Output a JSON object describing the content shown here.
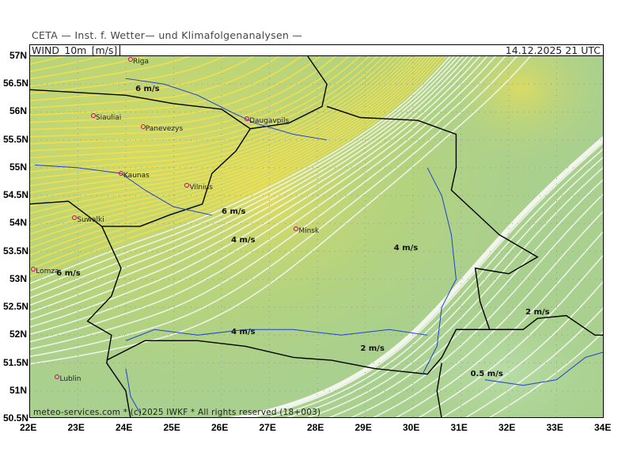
{
  "header": {
    "title": "CETA — Inst. f. Wetter— und Klimafolgenanalysen —",
    "variable": "WIND_10m_[m/s]",
    "valid_time": "14.12.2025 21 UTC"
  },
  "footer": {
    "copyright": "meteo-services.com * (c)2025 IWKF * All rights reserved (18+003)"
  },
  "axes": {
    "lat_labels": [
      "57N",
      "56.5N",
      "56N",
      "55.5N",
      "55N",
      "54.5N",
      "54N",
      "53.5N",
      "53N",
      "52.5N",
      "52N",
      "51.5N",
      "51N",
      "50.5N"
    ],
    "lon_labels": [
      "22E",
      "23E",
      "24E",
      "25E",
      "26E",
      "27E",
      "28E",
      "29E",
      "30E",
      "31E",
      "32E",
      "33E",
      "34E"
    ]
  },
  "cities": [
    {
      "name": "Riga",
      "lat": 56.95,
      "lon": 24.1
    },
    {
      "name": "Siauliai",
      "lat": 55.93,
      "lon": 23.32
    },
    {
      "name": "Panevezys",
      "lat": 55.73,
      "lon": 24.36
    },
    {
      "name": "Daugavpils",
      "lat": 55.88,
      "lon": 26.53
    },
    {
      "name": "Kaunas",
      "lat": 54.9,
      "lon": 23.9
    },
    {
      "name": "Vilnius",
      "lat": 54.68,
      "lon": 25.28
    },
    {
      "name": "Suwalki",
      "lat": 54.1,
      "lon": 22.93
    },
    {
      "name": "Minsk",
      "lat": 53.9,
      "lon": 27.56
    },
    {
      "name": "Lomza",
      "lat": 53.18,
      "lon": 22.07
    },
    {
      "name": "Lublin",
      "lat": 51.25,
      "lon": 22.57
    }
  ],
  "speed_labels": [
    {
      "text": "6 m/s",
      "lat": 56.4,
      "lon": 24.2
    },
    {
      "text": "6 m/s",
      "lat": 54.2,
      "lon": 26.0
    },
    {
      "text": "4 m/s",
      "lat": 53.7,
      "lon": 26.2
    },
    {
      "text": "4 m/s",
      "lat": 53.55,
      "lon": 29.6
    },
    {
      "text": "6 m/s",
      "lat": 53.1,
      "lon": 22.55
    },
    {
      "text": "2 m/s",
      "lat": 52.4,
      "lon": 32.35
    },
    {
      "text": "4 m/s",
      "lat": 52.05,
      "lon": 26.2
    },
    {
      "text": "2 m/s",
      "lat": 51.75,
      "lon": 28.9
    },
    {
      "text": "0.5 m/s",
      "lat": 51.3,
      "lon": 31.2
    }
  ],
  "colors": {
    "background": "#a9d08e",
    "fast_wind": "#f2e24a",
    "slow_wind": "#ffffff",
    "border": "#000000",
    "river": "#2040d0",
    "city": "#d0006f"
  }
}
